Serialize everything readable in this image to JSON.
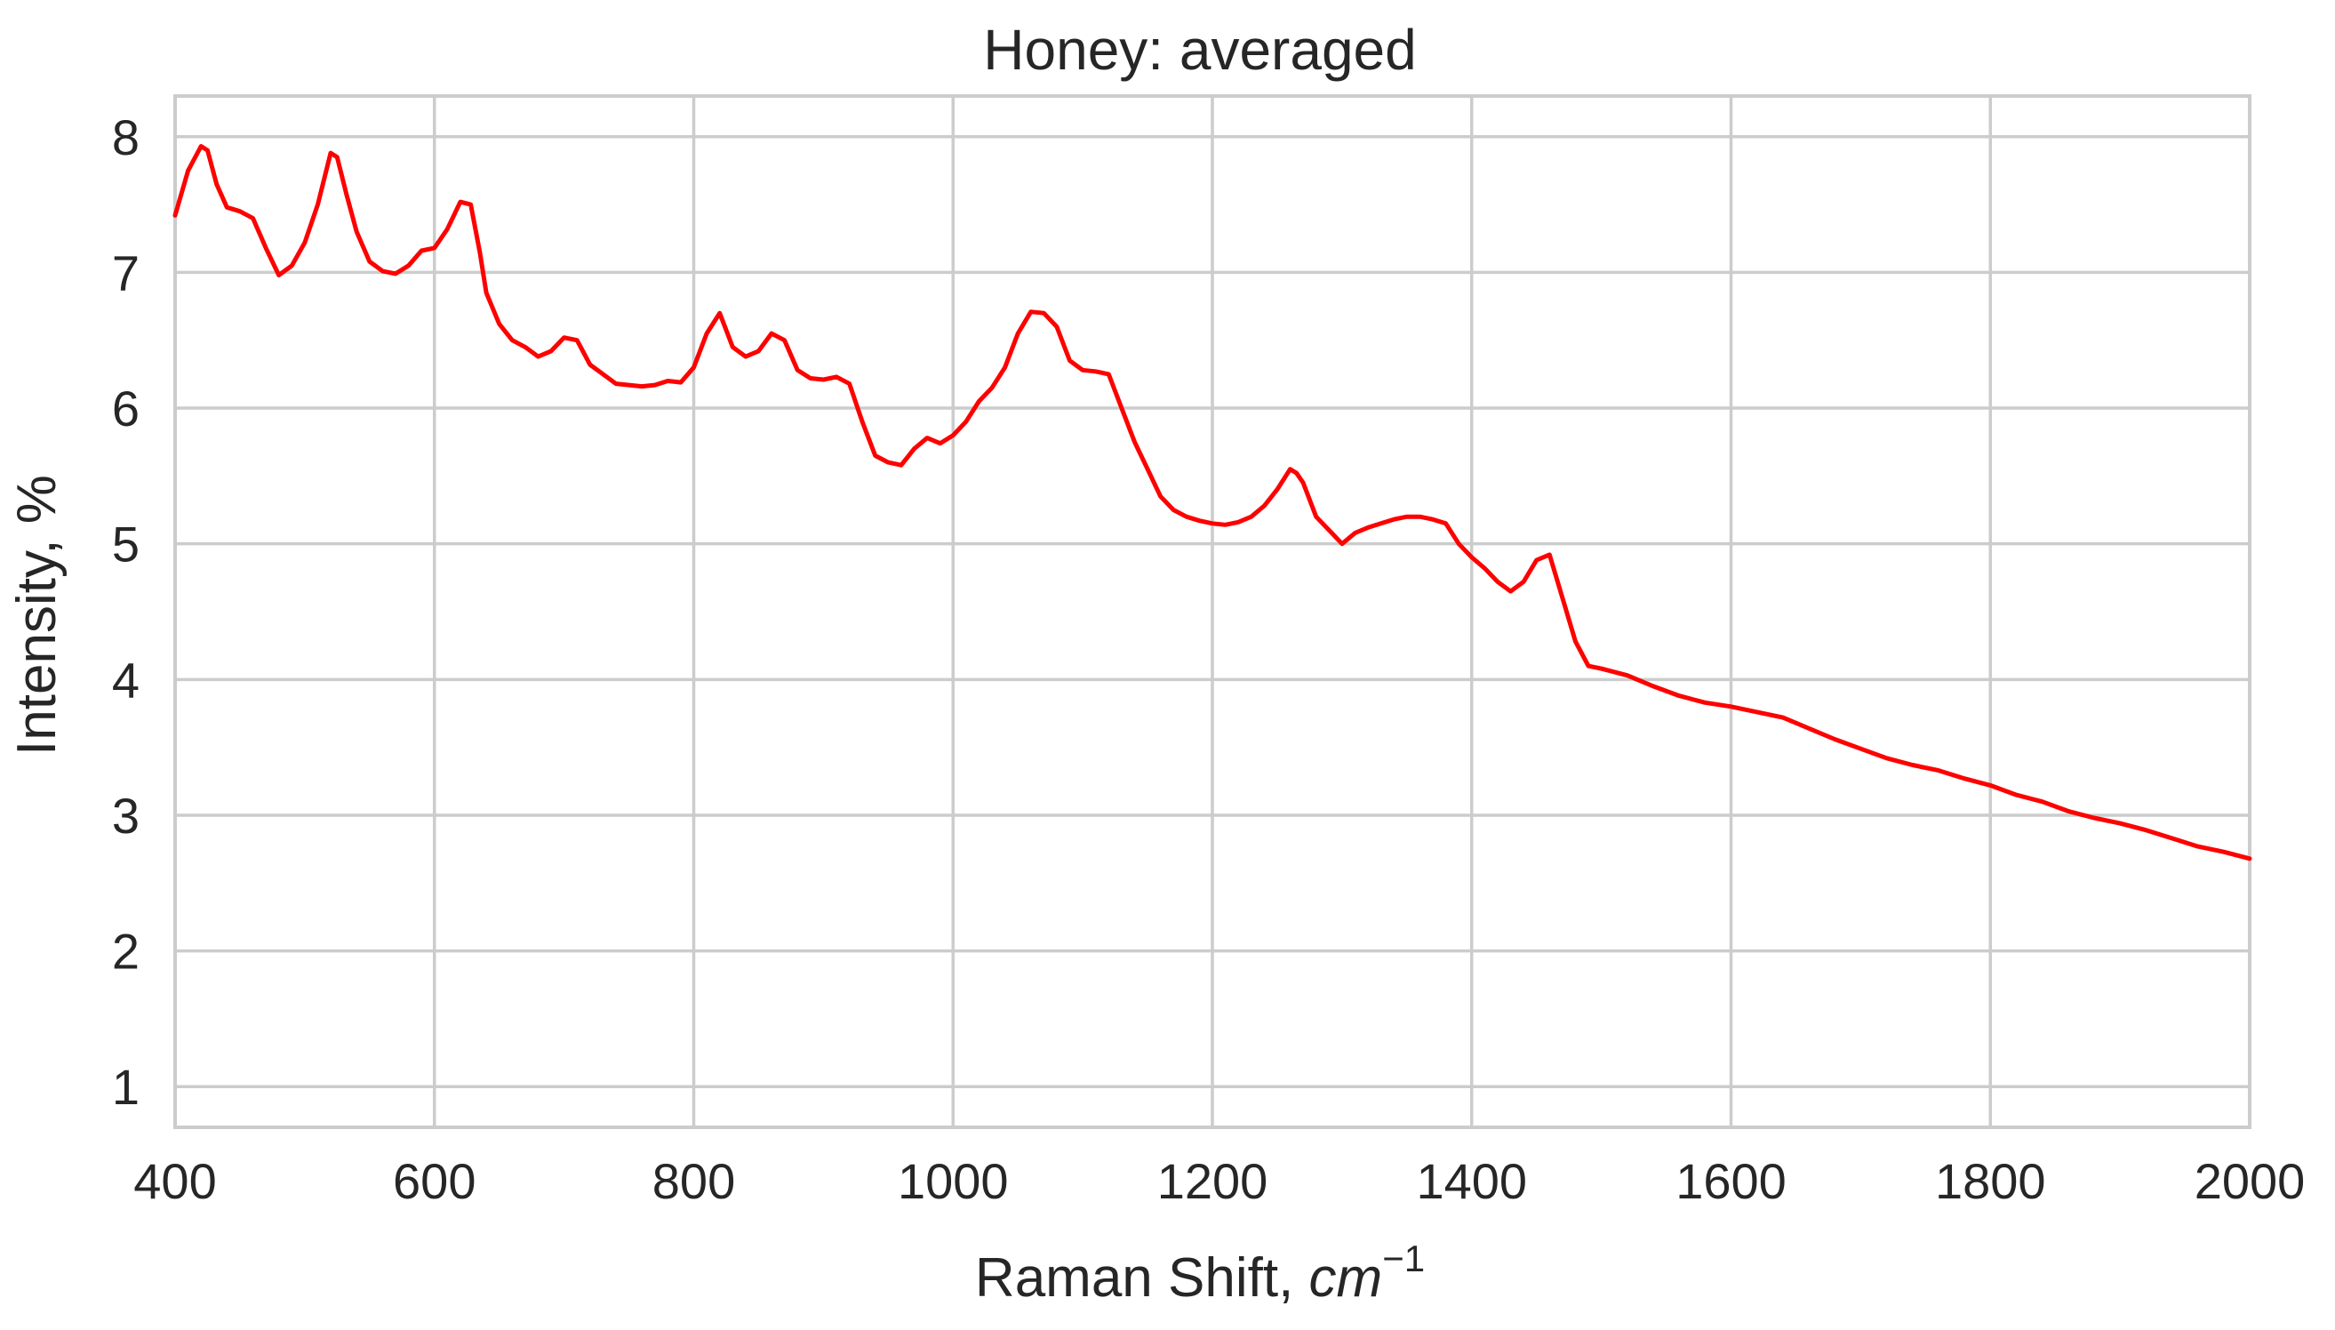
{
  "chart_data": {
    "type": "line",
    "title": "Honey: averaged",
    "xlabel_main": "Raman Shift, ",
    "xlabel_unit": "cm",
    "xlabel_exp": "−1",
    "ylabel": "Intensity, %",
    "xlim": [
      400,
      2000
    ],
    "ylim": [
      0.7,
      8.3
    ],
    "xticks": [
      400,
      600,
      800,
      1000,
      1200,
      1400,
      1600,
      1800,
      2000
    ],
    "yticks": [
      1,
      2,
      3,
      4,
      5,
      6,
      7,
      8
    ],
    "grid": true,
    "line_color": "#ff0000",
    "series": [
      {
        "x": [
          400,
          410,
          420,
          425,
          432,
          440,
          450,
          460,
          470,
          480,
          490,
          500,
          510,
          520,
          525,
          532,
          540,
          550,
          560,
          570,
          580,
          590,
          600,
          610,
          620,
          628,
          635,
          640,
          650,
          660,
          670,
          680,
          690,
          700,
          710,
          720,
          730,
          740,
          750,
          760,
          770,
          780,
          790,
          800,
          810,
          820,
          830,
          840,
          850,
          860,
          870,
          880,
          890,
          900,
          910,
          920,
          930,
          940,
          950,
          960,
          970,
          980,
          990,
          1000,
          1010,
          1020,
          1030,
          1040,
          1050,
          1060,
          1070,
          1080,
          1090,
          1100,
          1110,
          1120,
          1130,
          1140,
          1150,
          1160,
          1170,
          1180,
          1190,
          1200,
          1210,
          1220,
          1230,
          1240,
          1250,
          1260,
          1265,
          1270,
          1280,
          1290,
          1300,
          1310,
          1320,
          1330,
          1340,
          1350,
          1360,
          1370,
          1380,
          1390,
          1400,
          1410,
          1420,
          1430,
          1440,
          1450,
          1460,
          1470,
          1480,
          1490,
          1500,
          1520,
          1540,
          1560,
          1580,
          1600,
          1620,
          1640,
          1660,
          1680,
          1700,
          1720,
          1740,
          1760,
          1780,
          1800,
          1820,
          1840,
          1860,
          1880,
          1900,
          1920,
          1940,
          1960,
          1980,
          2000
        ],
        "y": [
          7.42,
          7.75,
          7.93,
          7.9,
          7.65,
          7.48,
          7.45,
          7.4,
          7.18,
          6.98,
          7.05,
          7.22,
          7.5,
          7.88,
          7.85,
          7.58,
          7.3,
          7.08,
          7.01,
          6.99,
          7.05,
          7.16,
          7.18,
          7.32,
          7.52,
          7.5,
          7.15,
          6.85,
          6.62,
          6.5,
          6.45,
          6.38,
          6.42,
          6.52,
          6.5,
          6.32,
          6.25,
          6.18,
          6.17,
          6.16,
          6.17,
          6.2,
          6.19,
          6.3,
          6.55,
          6.7,
          6.45,
          6.38,
          6.42,
          6.55,
          6.5,
          6.28,
          6.22,
          6.21,
          6.23,
          6.18,
          5.9,
          5.65,
          5.6,
          5.58,
          5.7,
          5.78,
          5.74,
          5.8,
          5.9,
          6.05,
          6.15,
          6.3,
          6.55,
          6.71,
          6.7,
          6.6,
          6.35,
          6.28,
          6.27,
          6.25,
          6.0,
          5.75,
          5.55,
          5.35,
          5.25,
          5.2,
          5.17,
          5.15,
          5.14,
          5.16,
          5.2,
          5.28,
          5.4,
          5.55,
          5.52,
          5.45,
          5.2,
          5.1,
          5.0,
          5.08,
          5.12,
          5.15,
          5.18,
          5.2,
          5.2,
          5.18,
          5.15,
          5.0,
          4.9,
          4.82,
          4.72,
          4.65,
          4.72,
          4.88,
          4.92,
          4.6,
          4.28,
          4.1,
          4.08,
          4.03,
          3.95,
          3.88,
          3.83,
          3.8,
          3.76,
          3.72,
          3.64,
          3.56,
          3.49,
          3.42,
          3.37,
          3.33,
          3.27,
          3.22,
          3.15,
          3.1,
          3.03,
          2.98,
          2.94,
          2.89,
          2.83,
          2.77,
          2.73,
          2.68
        ]
      }
    ]
  }
}
